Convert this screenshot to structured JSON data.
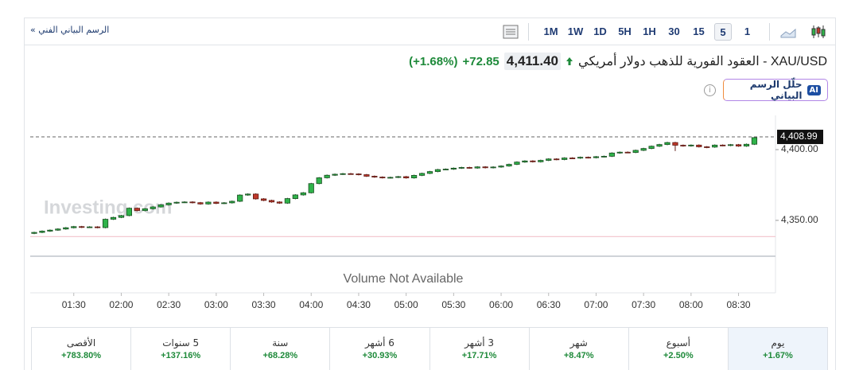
{
  "header": {
    "link": "الرسم البياني الفني »",
    "timeframes": [
      {
        "label": "1M"
      },
      {
        "label": "1W"
      },
      {
        "label": "1D"
      },
      {
        "label": "5H"
      },
      {
        "label": "1H"
      },
      {
        "label": "30"
      },
      {
        "label": "15"
      },
      {
        "label": "5",
        "selected": true
      },
      {
        "label": "1"
      }
    ]
  },
  "quote": {
    "title": "XAU/USD - العقود الفورية للذهب دولار أمريكي",
    "price": "4,411.40",
    "change": "+72.85",
    "change_pct": "(+1.68%)"
  },
  "ai_button": {
    "badge": "AI",
    "label": "حلّل الرسم البياني"
  },
  "chart": {
    "type": "candlestick",
    "watermark": "Investing.com",
    "volume_note": "Volume Not Available",
    "up_color": "#2fb34a",
    "down_color": "#c0392b",
    "ylim": [
      4325.8,
      4424.2
    ],
    "yticks": [
      {
        "value": 4350,
        "label": "4,350.00"
      },
      {
        "value": 4400,
        "label": "4,400.00"
      }
    ],
    "last_price": {
      "value": 4408.99,
      "label": "4,408.99"
    },
    "previous_close": 4338.55,
    "xticks": [
      "01:30",
      "02:00",
      "02:30",
      "03:00",
      "03:30",
      "04:00",
      "04:30",
      "05:00",
      "05:30",
      "06:00",
      "06:30",
      "07:00",
      "07:30",
      "08:00",
      "08:30"
    ],
    "ohlc": [
      [
        4340.8,
        4342.0,
        4340.3,
        4341.5
      ],
      [
        4341.5,
        4342.9,
        4341.0,
        4342.4
      ],
      [
        4342.4,
        4343.6,
        4341.9,
        4343.1
      ],
      [
        4343.1,
        4344.4,
        4342.6,
        4343.9
      ],
      [
        4343.9,
        4345.3,
        4343.4,
        4344.8
      ],
      [
        4344.8,
        4346.1,
        4344.3,
        4345.6
      ],
      [
        4345.6,
        4346.1,
        4344.6,
        4345.1
      ],
      [
        4345.1,
        4345.9,
        4344.6,
        4345.4
      ],
      [
        4345.4,
        4345.9,
        4344.4,
        4344.9
      ],
      [
        4344.9,
        4351.3,
        4344.4,
        4350.8
      ],
      [
        4350.8,
        4352.6,
        4350.3,
        4352.1
      ],
      [
        4352.1,
        4353.9,
        4351.6,
        4353.4
      ],
      [
        4353.4,
        4359.1,
        4352.9,
        4358.6
      ],
      [
        4358.6,
        4359.1,
        4356.4,
        4356.9
      ],
      [
        4356.9,
        4358.7,
        4356.4,
        4358.2
      ],
      [
        4358.2,
        4360.0,
        4357.7,
        4359.5
      ],
      [
        4359.5,
        4361.5,
        4359.0,
        4361.0
      ],
      [
        4361.0,
        4362.7,
        4360.5,
        4362.2
      ],
      [
        4362.2,
        4363.3,
        4361.7,
        4362.8
      ],
      [
        4362.8,
        4363.5,
        4362.3,
        4363.0
      ],
      [
        4363.0,
        4363.5,
        4362.0,
        4362.5
      ],
      [
        4362.5,
        4363.0,
        4361.1,
        4361.6
      ],
      [
        4361.6,
        4363.4,
        4361.1,
        4362.9
      ],
      [
        4362.9,
        4363.4,
        4361.5,
        4362.0
      ],
      [
        4362.0,
        4362.9,
        4361.5,
        4362.4
      ],
      [
        4362.4,
        4364.0,
        4361.9,
        4363.5
      ],
      [
        4363.5,
        4368.4,
        4363.0,
        4367.9
      ],
      [
        4367.9,
        4369.1,
        4367.4,
        4368.6
      ],
      [
        4368.6,
        4369.1,
        4364.7,
        4365.2
      ],
      [
        4365.2,
        4365.7,
        4363.6,
        4364.1
      ],
      [
        4364.1,
        4364.6,
        4362.5,
        4363.0
      ],
      [
        4363.0,
        4363.5,
        4361.7,
        4362.2
      ],
      [
        4362.2,
        4365.9,
        4361.7,
        4365.4
      ],
      [
        4365.4,
        4368.5,
        4364.9,
        4368.0
      ],
      [
        4368.0,
        4370.0,
        4367.5,
        4369.5
      ],
      [
        4369.5,
        4376.5,
        4369.0,
        4376.0
      ],
      [
        4376.0,
        4380.6,
        4375.5,
        4380.1
      ],
      [
        4380.1,
        4382.4,
        4379.6,
        4381.9
      ],
      [
        4381.9,
        4383.1,
        4381.4,
        4382.6
      ],
      [
        4382.6,
        4383.5,
        4382.1,
        4383.0
      ],
      [
        4383.0,
        4383.5,
        4382.3,
        4382.8
      ],
      [
        4382.8,
        4383.3,
        4381.8,
        4382.3
      ],
      [
        4382.3,
        4382.8,
        4380.7,
        4381.2
      ],
      [
        4381.2,
        4381.7,
        4380.1,
        4380.6
      ],
      [
        4380.6,
        4381.1,
        4379.6,
        4380.1
      ],
      [
        4380.1,
        4380.9,
        4379.6,
        4380.4
      ],
      [
        4380.4,
        4381.4,
        4379.9,
        4380.9
      ],
      [
        4380.9,
        4381.4,
        4379.5,
        4380.0
      ],
      [
        4380.0,
        4382.3,
        4379.5,
        4381.8
      ],
      [
        4381.8,
        4383.7,
        4381.3,
        4383.2
      ],
      [
        4383.2,
        4385.0,
        4382.7,
        4384.5
      ],
      [
        4384.5,
        4386.4,
        4384.0,
        4385.9
      ],
      [
        4385.9,
        4386.7,
        4385.4,
        4386.2
      ],
      [
        4386.2,
        4387.4,
        4385.7,
        4386.9
      ],
      [
        4386.9,
        4387.9,
        4386.4,
        4387.4
      ],
      [
        4387.4,
        4387.9,
        4386.5,
        4387.0
      ],
      [
        4387.0,
        4388.3,
        4386.5,
        4387.8
      ],
      [
        4387.8,
        4388.3,
        4386.7,
        4387.2
      ],
      [
        4387.2,
        4388.2,
        4386.7,
        4387.7
      ],
      [
        4387.7,
        4388.9,
        4387.2,
        4388.4
      ],
      [
        4388.4,
        4390.1,
        4387.9,
        4389.6
      ],
      [
        4389.6,
        4391.7,
        4389.1,
        4391.2
      ],
      [
        4391.2,
        4392.5,
        4390.7,
        4392.0
      ],
      [
        4392.0,
        4392.5,
        4390.9,
        4391.4
      ],
      [
        4391.4,
        4392.9,
        4390.9,
        4392.4
      ],
      [
        4392.4,
        4393.9,
        4391.9,
        4393.4
      ],
      [
        4393.4,
        4393.9,
        4392.5,
        4393.0
      ],
      [
        4393.0,
        4394.6,
        4392.5,
        4394.1
      ],
      [
        4394.1,
        4394.6,
        4393.5,
        4394.0
      ],
      [
        4394.0,
        4395.1,
        4393.5,
        4394.6
      ],
      [
        4394.6,
        4395.1,
        4393.8,
        4394.3
      ],
      [
        4394.3,
        4395.5,
        4393.8,
        4395.0
      ],
      [
        4395.0,
        4395.8,
        4394.5,
        4395.3
      ],
      [
        4395.3,
        4398.1,
        4394.8,
        4397.6
      ],
      [
        4397.6,
        4398.7,
        4397.1,
        4398.2
      ],
      [
        4398.2,
        4398.7,
        4397.5,
        4398.0
      ],
      [
        4398.0,
        4400.0,
        4397.5,
        4399.5
      ],
      [
        4399.5,
        4401.3,
        4399.0,
        4400.8
      ],
      [
        4400.8,
        4402.9,
        4400.3,
        4402.4
      ],
      [
        4402.4,
        4404.1,
        4401.9,
        4403.6
      ],
      [
        4403.6,
        4405.5,
        4403.1,
        4405.0
      ],
      [
        4405.0,
        4405.5,
        4399.0,
        4403.1
      ],
      [
        4403.1,
        4403.6,
        4402.1,
        4402.6
      ],
      [
        4402.6,
        4403.7,
        4402.1,
        4403.2
      ],
      [
        4403.2,
        4403.7,
        4401.5,
        4402.0
      ],
      [
        4402.0,
        4402.5,
        4401.0,
        4401.8
      ],
      [
        4401.8,
        4403.7,
        4401.3,
        4403.2
      ],
      [
        4403.2,
        4403.7,
        4402.4,
        4402.9
      ],
      [
        4402.9,
        4404.0,
        4402.4,
        4403.5
      ],
      [
        4403.5,
        4404.0,
        4402.0,
        4402.5
      ],
      [
        4402.5,
        4404.3,
        4402.0,
        4403.8
      ],
      [
        4403.8,
        4409.0,
        4403.3,
        4408.5
      ]
    ]
  },
  "performance": [
    {
      "period": "يوم",
      "change": "+1.67%"
    },
    {
      "period": "أسبوع",
      "change": "+2.50%"
    },
    {
      "period": "شهر",
      "change": "+8.47%"
    },
    {
      "period": "3 أشهر",
      "change": "+17.71%"
    },
    {
      "period": "6 أشهر",
      "change": "+30.93%"
    },
    {
      "period": "سنة",
      "change": "+68.28%"
    },
    {
      "period": "5 سنوات",
      "change": "+137.16%"
    },
    {
      "period": "الأقصى",
      "change": "+783.80%"
    }
  ]
}
